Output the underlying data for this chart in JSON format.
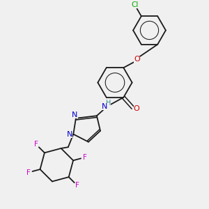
{
  "bg_color": "#f0f0f0",
  "bond_color": "#1a1a1a",
  "atoms": {
    "Cl": {
      "color": "#00aa00"
    },
    "O": {
      "color": "#cc0000"
    },
    "N": {
      "color": "#0000cc"
    },
    "H": {
      "color": "#2e8b8b"
    },
    "F": {
      "color": "#cc00cc"
    }
  },
  "figsize": [
    3.0,
    3.0
  ],
  "dpi": 100
}
